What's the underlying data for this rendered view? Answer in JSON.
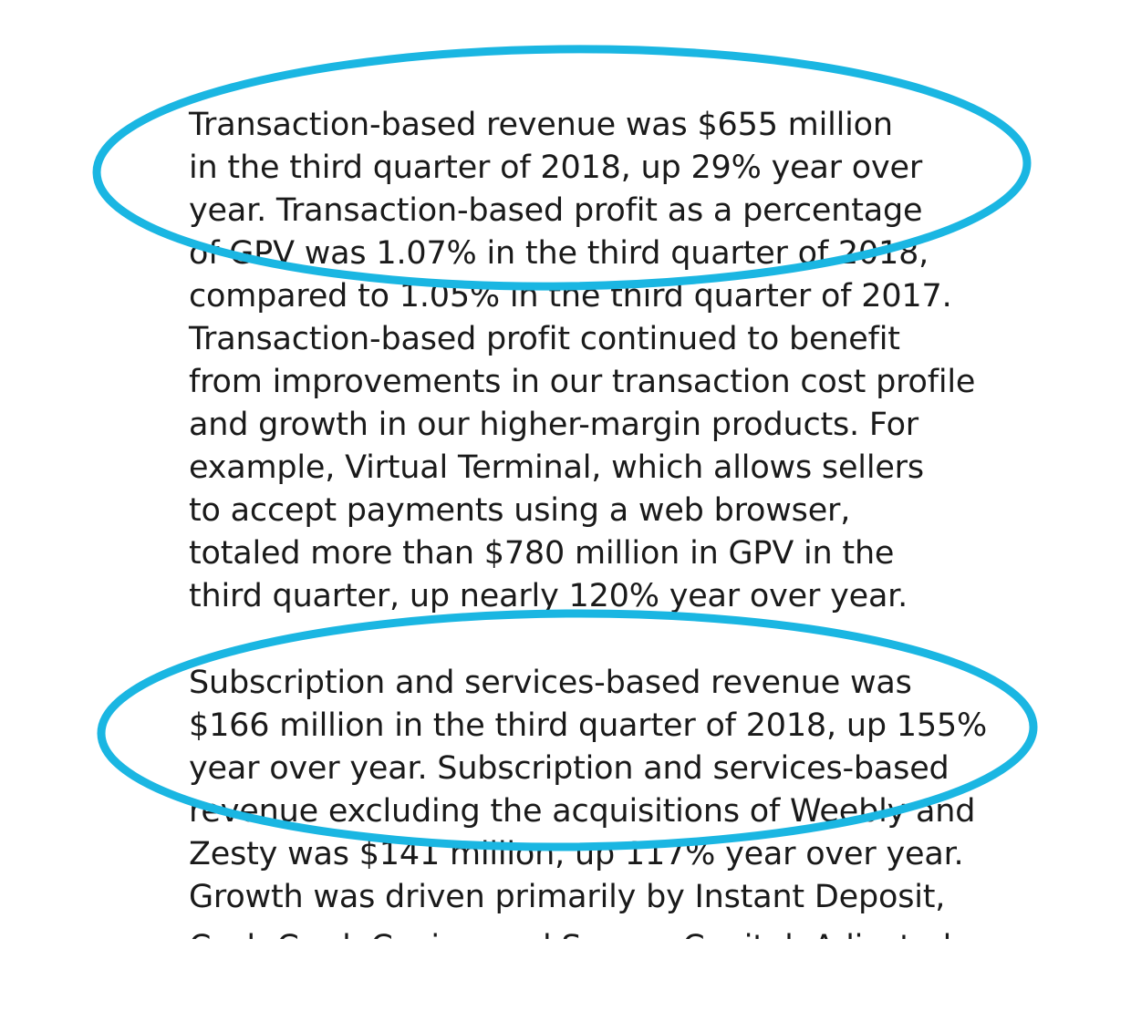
{
  "annotation_color": "#1ab6e2",
  "text_color": "#1a1a1a",
  "paragraphs": [
    {
      "lines": [
        "Transaction-based revenue was $655 million",
        "in the third quarter of 2018, up 29% year over",
        "year. Transaction-based profit as a percentage",
        "of GPV was 1.07% in the third quarter of 2018,",
        "compared to 1.05% in the third quarter of 2017.",
        "Transaction-based profit continued to benefit",
        "from improvements in our transaction cost profile",
        "and growth in our higher-margin products. For",
        "example, Virtual Terminal, which allows sellers",
        "to accept payments using a web browser,",
        "totaled more than $780 million in GPV in the",
        "third quarter, up nearly 120% year over year."
      ]
    },
    {
      "lines": [
        "Subscription and services-based revenue was",
        "$166 million in the third quarter of 2018, up 155%",
        "year over year. Subscription and services-based",
        "revenue excluding the acquisitions of Weebly and",
        "Zesty was $141 million, up 117% year over year.",
        "Growth was driven primarily by Instant Deposit,",
        "Cash Card, Caviar, and Square Capital. Adjusted"
      ]
    }
  ]
}
